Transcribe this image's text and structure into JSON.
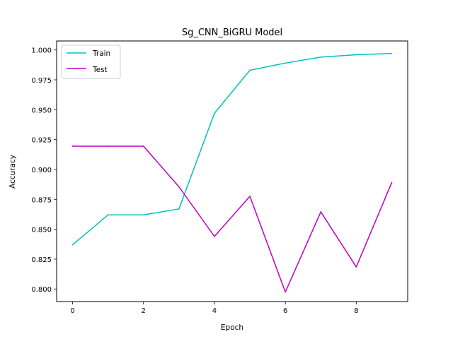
{
  "chart_data": {
    "type": "line",
    "title": "Sg_CNN_BiGRU Model",
    "xlabel": "Epoch",
    "ylabel": "Accuracy",
    "x": [
      0,
      1,
      2,
      3,
      4,
      5,
      6,
      7,
      8,
      9
    ],
    "xlim": [
      -0.45,
      9.45
    ],
    "ylim": [
      0.7895,
      1.0075
    ],
    "xticks": [
      0,
      2,
      4,
      6,
      8
    ],
    "yticks": [
      0.8,
      0.825,
      0.85,
      0.875,
      0.9,
      0.925,
      0.95,
      0.975,
      1.0
    ],
    "xtick_labels": [
      "0",
      "2",
      "4",
      "6",
      "8"
    ],
    "ytick_labels": [
      "0.800",
      "0.825",
      "0.850",
      "0.875",
      "0.900",
      "0.925",
      "0.950",
      "0.975",
      "1.000"
    ],
    "grid": false,
    "legend_position": "top-left",
    "series": [
      {
        "name": "Train",
        "color": "#00bfbf",
        "values": [
          0.837,
          0.862,
          0.862,
          0.867,
          0.947,
          0.983,
          0.989,
          0.994,
          0.996,
          0.997
        ]
      },
      {
        "name": "Test",
        "color": "#bf00bf",
        "values": [
          0.9195,
          0.9195,
          0.9195,
          0.8855,
          0.844,
          0.8775,
          0.7975,
          0.8645,
          0.8185,
          0.889
        ]
      }
    ]
  }
}
